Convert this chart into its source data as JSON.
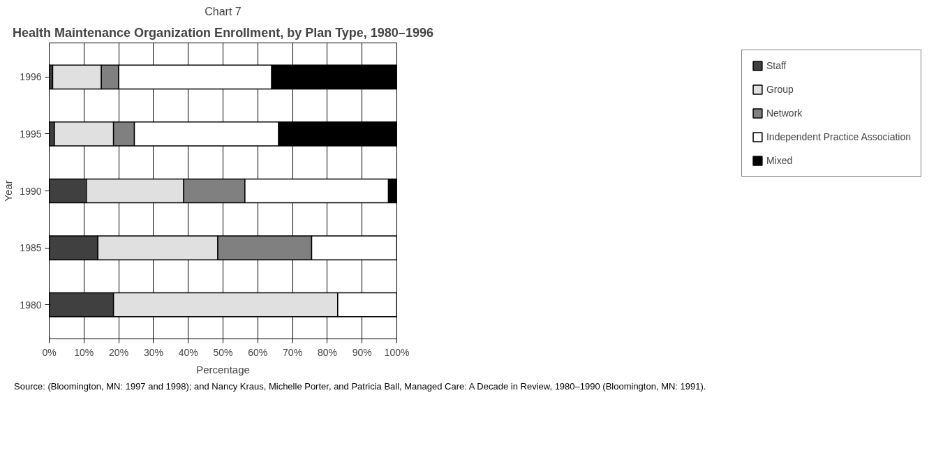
{
  "chart_data": {
    "type": "bar",
    "orientation": "horizontal",
    "stacked": true,
    "subtitle": "Chart 7",
    "title": "Health Maintenance Organization Enrollment, by Plan Type, 1980–1996",
    "xlabel": "Percentage",
    "ylabel": "Year",
    "categories": [
      "1996",
      "1995",
      "1990",
      "1985",
      "1980"
    ],
    "series": [
      {
        "name": "Staff",
        "color": "#404040",
        "values": [
          1,
          1.5,
          10.7,
          14,
          18.5
        ]
      },
      {
        "name": "Group",
        "color": "#e0e0e0",
        "values": [
          14,
          17,
          28,
          34.5,
          64.5
        ]
      },
      {
        "name": "Network",
        "color": "#808080",
        "values": [
          5,
          6,
          17.6,
          27,
          0
        ]
      },
      {
        "name": "Independent Practice Association",
        "color": "#ffffff",
        "values": [
          44,
          41.5,
          41.3,
          24.5,
          17
        ]
      },
      {
        "name": "Mixed",
        "color": "#000000",
        "values": [
          36,
          34,
          2.3,
          0,
          0
        ]
      }
    ],
    "xlim": [
      0,
      100
    ],
    "xticks": [
      {
        "value": 0,
        "label": "0%"
      },
      {
        "value": 10,
        "label": "10%"
      },
      {
        "value": 20,
        "label": "20%"
      },
      {
        "value": 30,
        "label": "30%"
      },
      {
        "value": 40,
        "label": "40%"
      },
      {
        "value": 50,
        "label": "50%"
      },
      {
        "value": 60,
        "label": "60%"
      },
      {
        "value": 70,
        "label": "70%"
      },
      {
        "value": 80,
        "label": "80%"
      },
      {
        "value": 90,
        "label": "90%"
      },
      {
        "value": 100,
        "label": "100%"
      }
    ],
    "grid": "x",
    "legend": "right",
    "annotations": [
      "Source: (Bloomington, MN: 1997 and 1998); and Nancy Kraus, Michelle Porter, and Patricia Ball, Managed Care: A Decade in Review, 1980–1990 (Bloomington, MN: 1991)."
    ]
  }
}
